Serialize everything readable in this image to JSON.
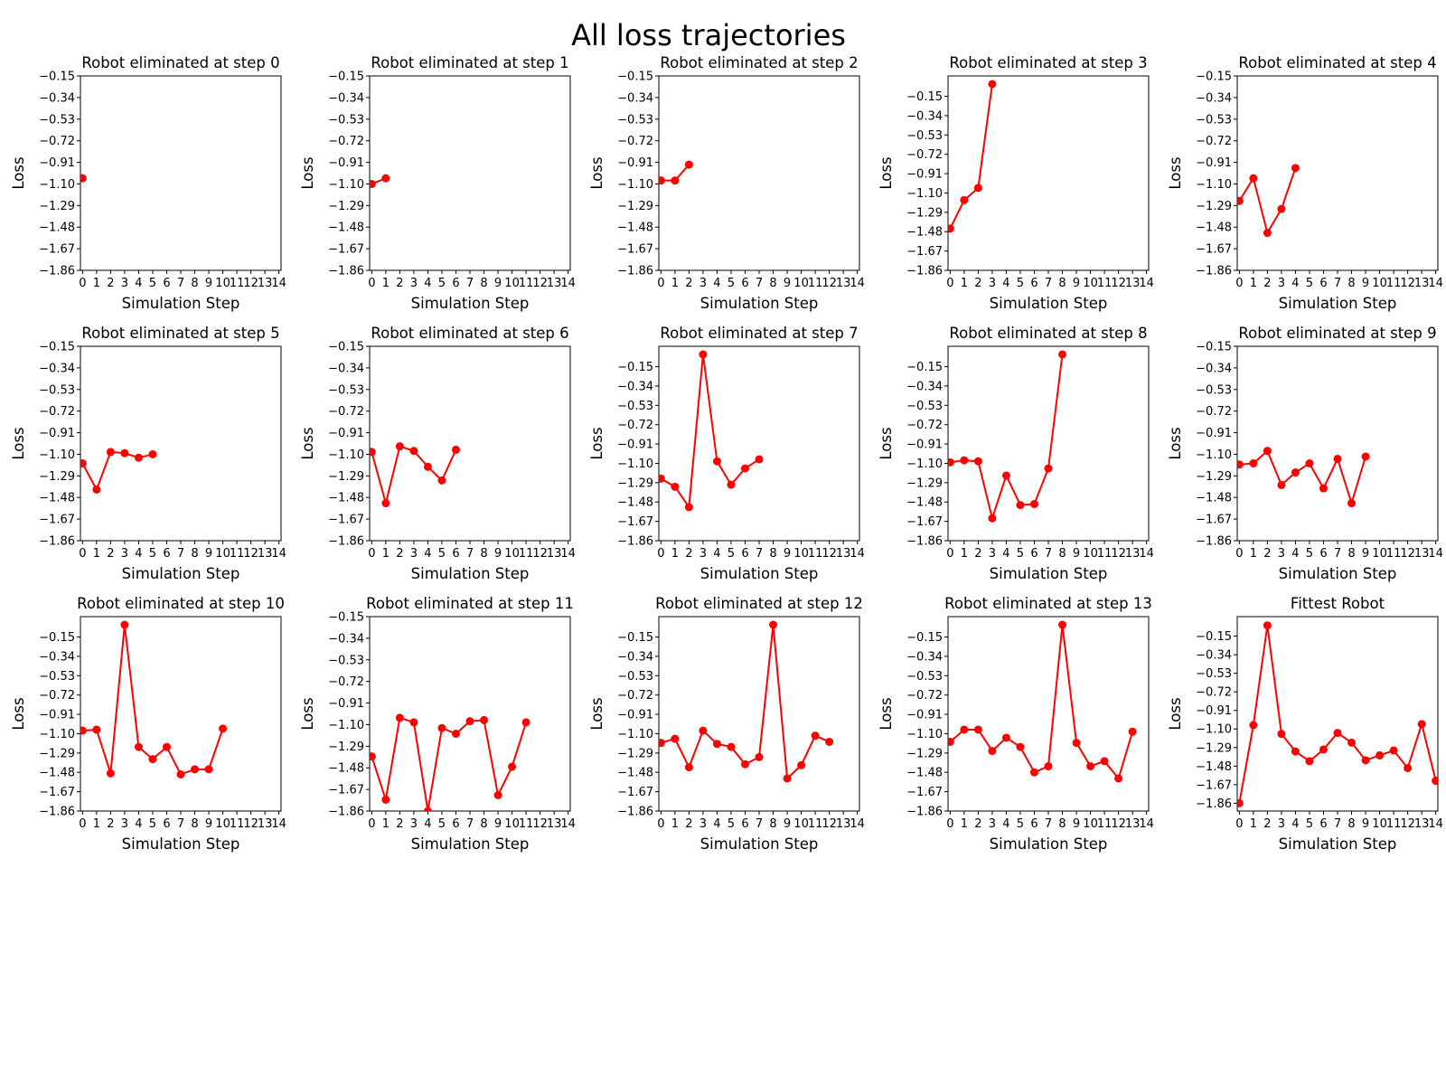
{
  "figure": {
    "title": "All loss trajectories"
  },
  "chart_data": [
    {
      "type": "line",
      "title": "Robot eliminated at step 0",
      "xlabel": "Simulation Step",
      "ylabel": "Loss",
      "x_ticks": [
        0,
        1,
        2,
        3,
        4,
        5,
        6,
        7,
        8,
        9,
        10,
        11,
        12,
        13,
        14
      ],
      "y_ticks": [
        "-0.15",
        "-0.34",
        "-0.53",
        "-0.72",
        "-0.91",
        "-1.10",
        "-1.29",
        "-1.48",
        "-1.67",
        "-1.86"
      ],
      "ylim": [
        -1.86,
        -0.15
      ],
      "color": "#ff0000",
      "values": [
        -1.05
      ]
    },
    {
      "type": "line",
      "title": "Robot eliminated at step 1",
      "xlabel": "Simulation Step",
      "ylabel": "Loss",
      "x_ticks": [
        0,
        1,
        2,
        3,
        4,
        5,
        6,
        7,
        8,
        9,
        10,
        11,
        12,
        13,
        14
      ],
      "y_ticks": [
        "-0.15",
        "-0.34",
        "-0.53",
        "-0.72",
        "-0.91",
        "-1.10",
        "-1.29",
        "-1.48",
        "-1.67",
        "-1.86"
      ],
      "ylim": [
        -1.86,
        -0.15
      ],
      "color": "#ff0000",
      "values": [
        -1.1,
        -1.05
      ]
    },
    {
      "type": "line",
      "title": "Robot eliminated at step 2",
      "xlabel": "Simulation Step",
      "ylabel": "Loss",
      "x_ticks": [
        0,
        1,
        2,
        3,
        4,
        5,
        6,
        7,
        8,
        9,
        10,
        11,
        12,
        13,
        14
      ],
      "y_ticks": [
        "-0.15",
        "-0.34",
        "-0.53",
        "-0.72",
        "-0.91",
        "-1.10",
        "-1.29",
        "-1.48",
        "-1.67",
        "-1.86"
      ],
      "ylim": [
        -1.86,
        -0.15
      ],
      "color": "#ff0000",
      "values": [
        -1.07,
        -1.07,
        -0.93
      ]
    },
    {
      "type": "line",
      "title": "Robot eliminated at step 3",
      "xlabel": "Simulation Step",
      "ylabel": "Loss",
      "x_ticks": [
        0,
        1,
        2,
        3,
        4,
        5,
        6,
        7,
        8,
        9,
        10,
        11,
        12,
        13,
        14
      ],
      "y_ticks": [
        "-0.15",
        "-0.34",
        "-0.53",
        "-0.72",
        "-0.91",
        "-1.10",
        "-1.29",
        "-1.48",
        "-1.67",
        "-1.86"
      ],
      "ylim": [
        -1.86,
        0.05
      ],
      "color": "#ff0000",
      "values": [
        -1.45,
        -1.17,
        -1.05,
        -0.03
      ]
    },
    {
      "type": "line",
      "title": "Robot eliminated at step 4",
      "xlabel": "Simulation Step",
      "ylabel": "Loss",
      "x_ticks": [
        0,
        1,
        2,
        3,
        4,
        5,
        6,
        7,
        8,
        9,
        10,
        11,
        12,
        13,
        14
      ],
      "y_ticks": [
        "-0.15",
        "-0.34",
        "-0.53",
        "-0.72",
        "-0.91",
        "-1.10",
        "-1.29",
        "-1.48",
        "-1.67",
        "-1.86"
      ],
      "ylim": [
        -1.86,
        -0.15
      ],
      "color": "#ff0000",
      "values": [
        -1.25,
        -1.05,
        -1.53,
        -1.32,
        -0.96
      ]
    },
    {
      "type": "line",
      "title": "Robot eliminated at step 5",
      "xlabel": "Simulation Step",
      "ylabel": "Loss",
      "x_ticks": [
        0,
        1,
        2,
        3,
        4,
        5,
        6,
        7,
        8,
        9,
        10,
        11,
        12,
        13,
        14
      ],
      "y_ticks": [
        "-0.15",
        "-0.34",
        "-0.53",
        "-0.72",
        "-0.91",
        "-1.10",
        "-1.29",
        "-1.48",
        "-1.67",
        "-1.86"
      ],
      "ylim": [
        -1.86,
        -0.15
      ],
      "color": "#ff0000",
      "values": [
        -1.18,
        -1.41,
        -1.08,
        -1.09,
        -1.13,
        -1.1
      ]
    },
    {
      "type": "line",
      "title": "Robot eliminated at step 6",
      "xlabel": "Simulation Step",
      "ylabel": "Loss",
      "x_ticks": [
        0,
        1,
        2,
        3,
        4,
        5,
        6,
        7,
        8,
        9,
        10,
        11,
        12,
        13,
        14
      ],
      "y_ticks": [
        "-0.15",
        "-0.34",
        "-0.53",
        "-0.72",
        "-0.91",
        "-1.10",
        "-1.29",
        "-1.48",
        "-1.67",
        "-1.86"
      ],
      "ylim": [
        -1.86,
        -0.15
      ],
      "color": "#ff0000",
      "values": [
        -1.08,
        -1.53,
        -1.03,
        -1.07,
        -1.21,
        -1.33,
        -1.06
      ]
    },
    {
      "type": "line",
      "title": "Robot eliminated at step 7",
      "xlabel": "Simulation Step",
      "ylabel": "Loss",
      "x_ticks": [
        0,
        1,
        2,
        3,
        4,
        5,
        6,
        7,
        8,
        9,
        10,
        11,
        12,
        13,
        14
      ],
      "y_ticks": [
        "-0.15",
        "-0.34",
        "-0.53",
        "-0.72",
        "-0.91",
        "-1.10",
        "-1.29",
        "-1.48",
        "-1.67",
        "-1.86"
      ],
      "ylim": [
        -1.86,
        0.05
      ],
      "color": "#ff0000",
      "values": [
        -1.25,
        -1.33,
        -1.53,
        -0.03,
        -1.08,
        -1.31,
        -1.15,
        -1.06
      ]
    },
    {
      "type": "line",
      "title": "Robot eliminated at step 8",
      "xlabel": "Simulation Step",
      "ylabel": "Loss",
      "x_ticks": [
        0,
        1,
        2,
        3,
        4,
        5,
        6,
        7,
        8,
        9,
        10,
        11,
        12,
        13,
        14
      ],
      "y_ticks": [
        "-0.15",
        "-0.34",
        "-0.53",
        "-0.72",
        "-0.91",
        "-1.10",
        "-1.29",
        "-1.48",
        "-1.67",
        "-1.86"
      ],
      "ylim": [
        -1.86,
        0.05
      ],
      "color": "#ff0000",
      "values": [
        -1.09,
        -1.07,
        -1.08,
        -1.64,
        -1.22,
        -1.51,
        -1.5,
        -1.15,
        -0.03
      ]
    },
    {
      "type": "line",
      "title": "Robot eliminated at step 9",
      "xlabel": "Simulation Step",
      "ylabel": "Loss",
      "x_ticks": [
        0,
        1,
        2,
        3,
        4,
        5,
        6,
        7,
        8,
        9,
        10,
        11,
        12,
        13,
        14
      ],
      "y_ticks": [
        "-0.15",
        "-0.34",
        "-0.53",
        "-0.72",
        "-0.91",
        "-1.10",
        "-1.29",
        "-1.48",
        "-1.67",
        "-1.86"
      ],
      "ylim": [
        -1.86,
        -0.15
      ],
      "color": "#ff0000",
      "values": [
        -1.19,
        -1.18,
        -1.07,
        -1.37,
        -1.26,
        -1.18,
        -1.4,
        -1.14,
        -1.53,
        -1.12
      ]
    },
    {
      "type": "line",
      "title": "Robot eliminated at step 10",
      "xlabel": "Simulation Step",
      "ylabel": "Loss",
      "x_ticks": [
        0,
        1,
        2,
        3,
        4,
        5,
        6,
        7,
        8,
        9,
        10,
        11,
        12,
        13,
        14
      ],
      "y_ticks": [
        "-0.15",
        "-0.34",
        "-0.53",
        "-0.72",
        "-0.91",
        "-1.10",
        "-1.29",
        "-1.48",
        "-1.67",
        "-1.86"
      ],
      "ylim": [
        -1.86,
        0.05
      ],
      "color": "#ff0000",
      "values": [
        -1.07,
        -1.06,
        -1.49,
        -0.03,
        -1.23,
        -1.35,
        -1.23,
        -1.5,
        -1.45,
        -1.45,
        -1.05
      ]
    },
    {
      "type": "line",
      "title": "Robot eliminated at step 11",
      "xlabel": "Simulation Step",
      "ylabel": "Loss",
      "x_ticks": [
        0,
        1,
        2,
        3,
        4,
        5,
        6,
        7,
        8,
        9,
        10,
        11,
        12,
        13,
        14
      ],
      "y_ticks": [
        "-0.15",
        "-0.34",
        "-0.53",
        "-0.72",
        "-0.91",
        "-1.10",
        "-1.29",
        "-1.48",
        "-1.67",
        "-1.86"
      ],
      "ylim": [
        -1.86,
        -0.15
      ],
      "color": "#ff0000",
      "values": [
        -1.38,
        -1.76,
        -1.04,
        -1.08,
        -1.86,
        -1.13,
        -1.18,
        -1.07,
        -1.06,
        -1.72,
        -1.47,
        -1.08
      ]
    },
    {
      "type": "line",
      "title": "Robot eliminated at step 12",
      "xlabel": "Simulation Step",
      "ylabel": "Loss",
      "x_ticks": [
        0,
        1,
        2,
        3,
        4,
        5,
        6,
        7,
        8,
        9,
        10,
        11,
        12,
        13,
        14
      ],
      "y_ticks": [
        "-0.15",
        "-0.34",
        "-0.53",
        "-0.72",
        "-0.91",
        "-1.10",
        "-1.29",
        "-1.48",
        "-1.67",
        "-1.86"
      ],
      "ylim": [
        -1.86,
        0.05
      ],
      "color": "#ff0000",
      "values": [
        -1.19,
        -1.15,
        -1.43,
        -1.07,
        -1.2,
        -1.23,
        -1.4,
        -1.33,
        -0.03,
        -1.54,
        -1.41,
        -1.12,
        -1.18
      ]
    },
    {
      "type": "line",
      "title": "Robot eliminated at step 13",
      "xlabel": "Simulation Step",
      "ylabel": "Loss",
      "x_ticks": [
        0,
        1,
        2,
        3,
        4,
        5,
        6,
        7,
        8,
        9,
        10,
        11,
        12,
        13,
        14
      ],
      "y_ticks": [
        "-0.15",
        "-0.34",
        "-0.53",
        "-0.72",
        "-0.91",
        "-1.10",
        "-1.29",
        "-1.48",
        "-1.67",
        "-1.86"
      ],
      "ylim": [
        -1.86,
        0.05
      ],
      "color": "#ff0000",
      "values": [
        -1.18,
        -1.06,
        -1.06,
        -1.27,
        -1.14,
        -1.23,
        -1.48,
        -1.42,
        -0.03,
        -1.19,
        -1.42,
        -1.37,
        -1.54,
        -1.08
      ]
    },
    {
      "type": "line",
      "title": "Fittest Robot",
      "xlabel": "Simulation Step",
      "ylabel": "Loss",
      "x_ticks": [
        0,
        1,
        2,
        3,
        4,
        5,
        6,
        7,
        8,
        9,
        10,
        11,
        12,
        13,
        14
      ],
      "y_ticks": [
        "-0.15",
        "-0.34",
        "-0.53",
        "-0.72",
        "-0.91",
        "-1.10",
        "-1.29",
        "-1.48",
        "-1.67",
        "-1.86"
      ],
      "ylim": [
        -1.94,
        0.05
      ],
      "color": "#ff0000",
      "values": [
        -1.86,
        -1.06,
        -0.04,
        -1.15,
        -1.33,
        -1.43,
        -1.31,
        -1.14,
        -1.24,
        -1.42,
        -1.37,
        -1.32,
        -1.5,
        -1.05,
        -1.63
      ]
    }
  ]
}
